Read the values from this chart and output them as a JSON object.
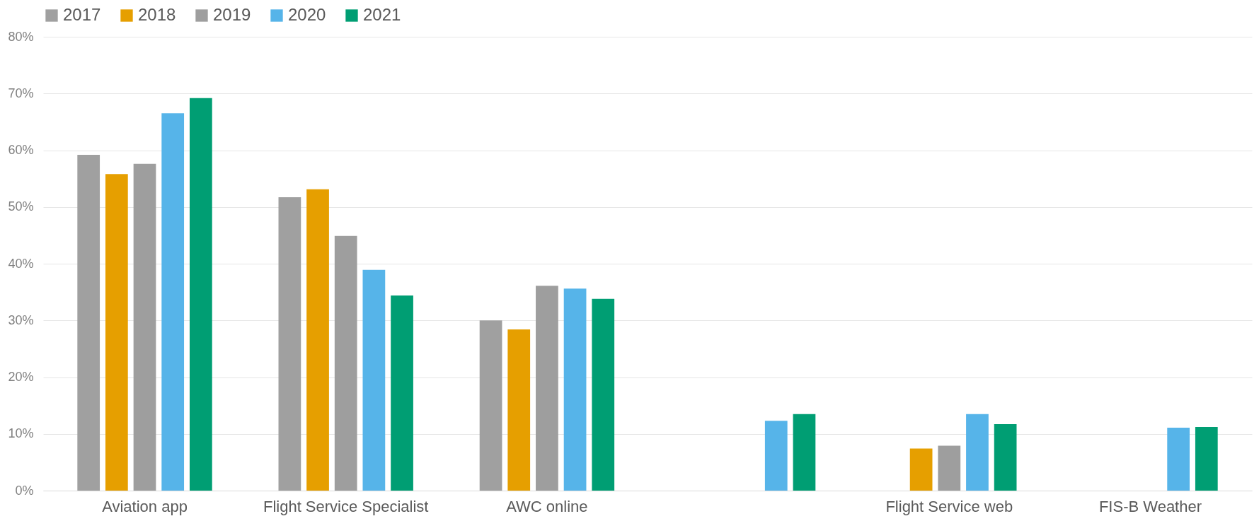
{
  "chart_data": {
    "type": "bar",
    "categories": [
      "Aviation app",
      "Flight Service Specialist",
      "AWC online",
      null,
      "Flight Service web",
      "FIS-B Weather"
    ],
    "series": [
      {
        "name": "2017",
        "color": "#a0a0a0",
        "values": [
          59.2,
          51.7,
          30.0,
          null,
          null,
          null
        ]
      },
      {
        "name": "2018",
        "color": "#e69f00",
        "values": [
          55.8,
          53.1,
          28.4,
          null,
          7.4,
          null
        ]
      },
      {
        "name": "2019",
        "color": "#9e9e9e",
        "values": [
          57.6,
          44.9,
          36.1,
          null,
          7.9,
          null
        ]
      },
      {
        "name": "2020",
        "color": "#56b4e9",
        "values": [
          66.5,
          38.9,
          35.6,
          12.3,
          13.5,
          11.1
        ]
      },
      {
        "name": "2021",
        "color": "#009e73",
        "values": [
          69.2,
          34.4,
          33.8,
          13.5,
          11.7,
          11.2
        ]
      }
    ],
    "ylim": [
      0,
      80
    ],
    "yticks": [
      {
        "value": 0,
        "label": "0%"
      },
      {
        "value": 10,
        "label": "10%"
      },
      {
        "value": 20,
        "label": "20%"
      },
      {
        "value": 30,
        "label": "30%"
      },
      {
        "value": 40,
        "label": "40%"
      },
      {
        "value": 50,
        "label": "50%"
      },
      {
        "value": 60,
        "label": "60%"
      },
      {
        "value": 70,
        "label": "70%"
      },
      {
        "value": 80,
        "label": "80%"
      }
    ],
    "grid": "y",
    "legend": "top"
  }
}
